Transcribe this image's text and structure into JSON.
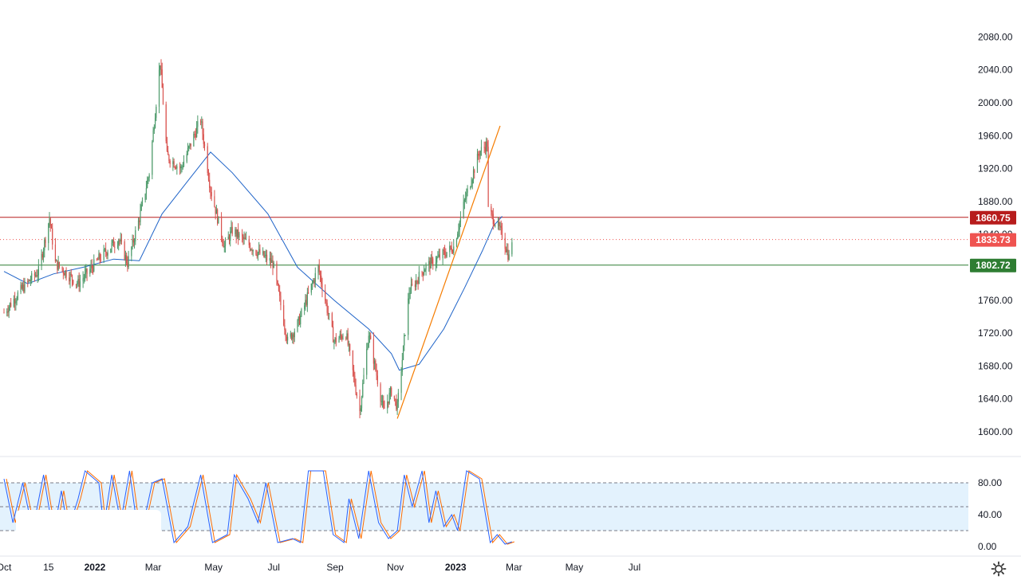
{
  "chart_data": {
    "type": "candlestick",
    "price_axis": {
      "ticks": [
        1600,
        1640,
        1680,
        1720,
        1760,
        1800,
        1840,
        1880,
        1920,
        1960,
        2000,
        2040,
        2080
      ],
      "tick_labels": [
        "1600.00",
        "1640.00",
        "1680.00",
        "1720.00",
        "1760.00",
        "1800.00",
        "1840.00",
        "1880.00",
        "1920.00",
        "1960.00",
        "2000.00",
        "2040.00",
        "2080.00"
      ],
      "range": [
        1580,
        2100
      ]
    },
    "time_axis": {
      "labels": [
        "Oct",
        "15",
        "2022",
        "Mar",
        "May",
        "Jul",
        "Sep",
        "Nov",
        "2023",
        "Mar",
        "May",
        "Jul"
      ],
      "bold_labels": [
        "2022",
        "2023"
      ]
    },
    "horizontal_levels": [
      {
        "value": 1860.75,
        "label": "1860.75",
        "color": "#b71c1c",
        "style": "solid"
      },
      {
        "value": 1833.73,
        "label": "1833.73",
        "color": "#ef5350",
        "style": "dotted"
      },
      {
        "value": 1802.72,
        "label": "1802.72",
        "color": "#2e7d32",
        "style": "solid"
      }
    ],
    "trendline": {
      "from": {
        "date": "2022-11-03",
        "price": 1616
      },
      "to": {
        "date": "2023-02-15",
        "price": 1972
      },
      "color": "#f57c00"
    },
    "price_keypoints": [
      {
        "date": "2021-10-01",
        "price": 1745
      },
      {
        "date": "2021-10-20",
        "price": 1775
      },
      {
        "date": "2021-11-05",
        "price": 1795
      },
      {
        "date": "2021-11-16",
        "price": 1860
      },
      {
        "date": "2021-11-22",
        "price": 1805
      },
      {
        "date": "2021-12-15",
        "price": 1780
      },
      {
        "date": "2022-01-05",
        "price": 1810
      },
      {
        "date": "2022-01-25",
        "price": 1835
      },
      {
        "date": "2022-02-03",
        "price": 1805
      },
      {
        "date": "2022-02-15",
        "price": 1860
      },
      {
        "date": "2022-02-25",
        "price": 1915
      },
      {
        "date": "2022-03-08",
        "price": 2050
      },
      {
        "date": "2022-03-15",
        "price": 1935
      },
      {
        "date": "2022-03-29",
        "price": 1920
      },
      {
        "date": "2022-04-18",
        "price": 1980
      },
      {
        "date": "2022-04-28",
        "price": 1895
      },
      {
        "date": "2022-05-12",
        "price": 1825
      },
      {
        "date": "2022-05-20",
        "price": 1845
      },
      {
        "date": "2022-06-13",
        "price": 1820
      },
      {
        "date": "2022-06-30",
        "price": 1805
      },
      {
        "date": "2022-07-15",
        "price": 1710
      },
      {
        "date": "2022-07-25",
        "price": 1730
      },
      {
        "date": "2022-08-15",
        "price": 1800
      },
      {
        "date": "2022-08-31",
        "price": 1710
      },
      {
        "date": "2022-09-12",
        "price": 1720
      },
      {
        "date": "2022-09-26",
        "price": 1625
      },
      {
        "date": "2022-10-05",
        "price": 1720
      },
      {
        "date": "2022-10-20",
        "price": 1625
      },
      {
        "date": "2022-10-28",
        "price": 1650
      },
      {
        "date": "2022-11-03",
        "price": 1630
      },
      {
        "date": "2022-11-15",
        "price": 1770
      },
      {
        "date": "2022-12-01",
        "price": 1800
      },
      {
        "date": "2022-12-13",
        "price": 1810
      },
      {
        "date": "2022-12-30",
        "price": 1825
      },
      {
        "date": "2023-01-10",
        "price": 1880
      },
      {
        "date": "2023-01-25",
        "price": 1940
      },
      {
        "date": "2023-02-02",
        "price": 1950
      },
      {
        "date": "2023-02-03",
        "price": 1870
      },
      {
        "date": "2023-02-17",
        "price": 1840
      },
      {
        "date": "2023-02-24",
        "price": 1812
      },
      {
        "date": "2023-02-27",
        "price": 1833.73
      }
    ],
    "moving_average": {
      "color": "#1e63c8",
      "keypoints": [
        {
          "date": "2021-10-01",
          "price": 1795
        },
        {
          "date": "2021-10-25",
          "price": 1780
        },
        {
          "date": "2021-11-20",
          "price": 1792
        },
        {
          "date": "2021-12-20",
          "price": 1800
        },
        {
          "date": "2022-01-20",
          "price": 1810
        },
        {
          "date": "2022-02-15",
          "price": 1808
        },
        {
          "date": "2022-03-10",
          "price": 1865
        },
        {
          "date": "2022-04-05",
          "price": 1905
        },
        {
          "date": "2022-04-28",
          "price": 1940
        },
        {
          "date": "2022-05-20",
          "price": 1915
        },
        {
          "date": "2022-06-25",
          "price": 1865
        },
        {
          "date": "2022-07-25",
          "price": 1800
        },
        {
          "date": "2022-08-31",
          "price": 1760
        },
        {
          "date": "2022-10-05",
          "price": 1725
        },
        {
          "date": "2022-10-28",
          "price": 1695
        },
        {
          "date": "2022-11-05",
          "price": 1675
        },
        {
          "date": "2022-11-25",
          "price": 1682
        },
        {
          "date": "2022-12-20",
          "price": 1725
        },
        {
          "date": "2023-01-10",
          "price": 1775
        },
        {
          "date": "2023-01-28",
          "price": 1820
        },
        {
          "date": "2023-02-08",
          "price": 1850
        },
        {
          "date": "2023-02-17",
          "price": 1862
        }
      ]
    },
    "stochastic": {
      "ticks": [
        0,
        40,
        80
      ],
      "tick_labels": [
        "0.00",
        "40.00",
        "80.00"
      ],
      "bands": [
        20,
        50,
        80
      ],
      "k_color": "#2962ff",
      "d_color": "#ff6d00",
      "band_fill": "#e3f2fd",
      "keypoints": [
        {
          "date": "2021-10-01",
          "value": 85
        },
        {
          "date": "2021-10-10",
          "value": 30
        },
        {
          "date": "2021-10-20",
          "value": 80
        },
        {
          "date": "2021-10-30",
          "value": 20
        },
        {
          "date": "2021-11-10",
          "value": 90
        },
        {
          "date": "2021-11-20",
          "value": 15
        },
        {
          "date": "2021-11-28",
          "value": 70
        },
        {
          "date": "2021-12-05",
          "value": 20
        },
        {
          "date": "2021-12-15",
          "value": 60
        },
        {
          "date": "2021-12-22",
          "value": 95
        },
        {
          "date": "2022-01-05",
          "value": 80
        },
        {
          "date": "2022-01-10",
          "value": 25
        },
        {
          "date": "2022-01-18",
          "value": 90
        },
        {
          "date": "2022-01-27",
          "value": 30
        },
        {
          "date": "2022-02-05",
          "value": 95
        },
        {
          "date": "2022-02-15",
          "value": 5
        },
        {
          "date": "2022-02-28",
          "value": 80
        },
        {
          "date": "2022-03-10",
          "value": 85
        },
        {
          "date": "2022-03-22",
          "value": 5
        },
        {
          "date": "2022-04-05",
          "value": 25
        },
        {
          "date": "2022-04-18",
          "value": 90
        },
        {
          "date": "2022-04-30",
          "value": 5
        },
        {
          "date": "2022-05-15",
          "value": 15
        },
        {
          "date": "2022-05-22",
          "value": 90
        },
        {
          "date": "2022-06-05",
          "value": 60
        },
        {
          "date": "2022-06-15",
          "value": 30
        },
        {
          "date": "2022-06-23",
          "value": 80
        },
        {
          "date": "2022-07-05",
          "value": 5
        },
        {
          "date": "2022-07-20",
          "value": 10
        },
        {
          "date": "2022-07-28",
          "value": 5
        },
        {
          "date": "2022-08-05",
          "value": 95
        },
        {
          "date": "2022-08-20",
          "value": 95
        },
        {
          "date": "2022-08-30",
          "value": 15
        },
        {
          "date": "2022-09-10",
          "value": 5
        },
        {
          "date": "2022-09-15",
          "value": 60
        },
        {
          "date": "2022-09-25",
          "value": 10
        },
        {
          "date": "2022-10-05",
          "value": 95
        },
        {
          "date": "2022-10-15",
          "value": 30
        },
        {
          "date": "2022-10-25",
          "value": 10
        },
        {
          "date": "2022-11-03",
          "value": 20
        },
        {
          "date": "2022-11-10",
          "value": 90
        },
        {
          "date": "2022-11-18",
          "value": 50
        },
        {
          "date": "2022-11-28",
          "value": 95
        },
        {
          "date": "2022-12-05",
          "value": 30
        },
        {
          "date": "2022-12-12",
          "value": 70
        },
        {
          "date": "2022-12-20",
          "value": 25
        },
        {
          "date": "2022-12-28",
          "value": 40
        },
        {
          "date": "2023-01-03",
          "value": 20
        },
        {
          "date": "2023-01-12",
          "value": 95
        },
        {
          "date": "2023-01-25",
          "value": 85
        },
        {
          "date": "2023-02-05",
          "value": 5
        },
        {
          "date": "2023-02-12",
          "value": 15
        },
        {
          "date": "2023-02-20",
          "value": 3
        },
        {
          "date": "2023-02-27",
          "value": 6
        }
      ]
    }
  },
  "icons": {
    "settings": "gear-icon"
  }
}
